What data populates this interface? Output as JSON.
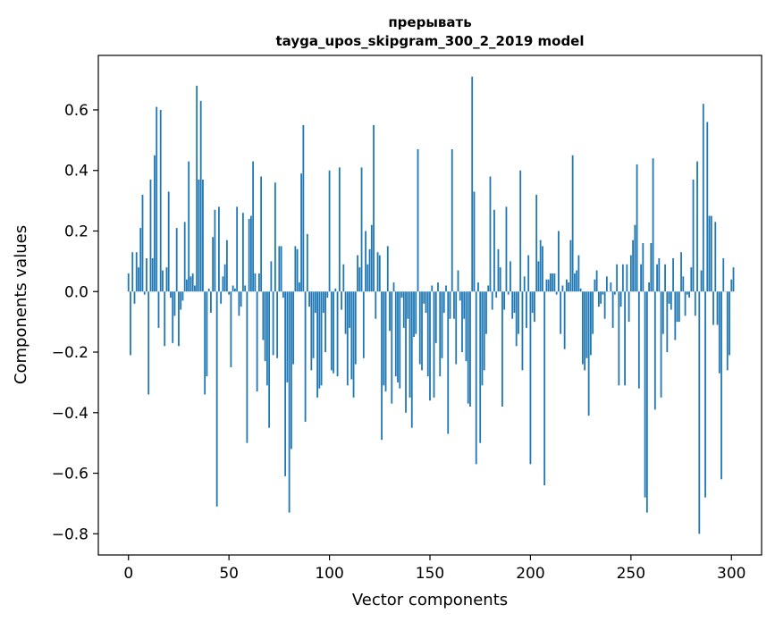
{
  "chart_data": {
    "type": "bar",
    "title": "прерывать",
    "subtitle": "tayga_upos_skipgram_300_2_2019 model",
    "xlabel": "Vector components",
    "ylabel": "Components values",
    "xlim": [
      -15,
      315
    ],
    "ylim": [
      -0.87,
      0.78
    ],
    "xticks": [
      0,
      50,
      100,
      150,
      200,
      250,
      300
    ],
    "xtick_labels": [
      "0",
      "50",
      "100",
      "150",
      "200",
      "250",
      "300"
    ],
    "yticks": [
      -0.8,
      -0.6,
      -0.4,
      -0.2,
      0.0,
      0.2,
      0.4,
      0.6
    ],
    "ytick_labels": [
      "−0.8",
      "−0.6",
      "−0.4",
      "−0.2",
      "0.0",
      "0.2",
      "0.4",
      "0.6"
    ],
    "grid": false,
    "bar_color": "#1f77b4",
    "values": [
      0.06,
      -0.21,
      0.13,
      -0.04,
      0.13,
      0.08,
      0.21,
      0.32,
      -0.01,
      0.11,
      -0.34,
      0.37,
      0.11,
      0.45,
      0.61,
      -0.12,
      0.6,
      0.07,
      -0.18,
      0.08,
      0.33,
      -0.02,
      -0.17,
      -0.08,
      0.21,
      -0.18,
      -0.06,
      -0.03,
      0.23,
      0.04,
      0.43,
      0.05,
      0.06,
      0.02,
      0.68,
      0.37,
      0.63,
      0.37,
      -0.34,
      -0.28,
      0.01,
      -0.07,
      0.18,
      0.27,
      -0.71,
      0.28,
      -0.04,
      0.05,
      0.09,
      0.17,
      -0.01,
      -0.25,
      0.02,
      0.01,
      0.28,
      -0.08,
      -0.05,
      0.26,
      0.02,
      -0.5,
      0.24,
      0.25,
      0.43,
      0.06,
      -0.33,
      0.06,
      0.38,
      -0.16,
      -0.23,
      -0.31,
      -0.45,
      0.1,
      -0.21,
      0.36,
      -0.22,
      0.15,
      0.15,
      -0.02,
      -0.61,
      -0.3,
      -0.73,
      -0.52,
      -0.24,
      0.15,
      0.14,
      0.03,
      0.39,
      0.55,
      -0.43,
      0.19,
      -0.05,
      -0.26,
      -0.22,
      -0.07,
      -0.35,
      -0.32,
      -0.31,
      -0.07,
      -0.2,
      -0.02,
      0.4,
      -0.26,
      -0.27,
      0.01,
      -0.28,
      0.41,
      -0.06,
      0.09,
      -0.14,
      -0.31,
      -0.12,
      -0.29,
      -0.35,
      -0.24,
      0.12,
      0.08,
      0.41,
      -0.22,
      0.2,
      0.09,
      0.14,
      0.22,
      0.55,
      -0.09,
      0.13,
      0.12,
      -0.49,
      -0.31,
      -0.33,
      0.15,
      -0.13,
      -0.37,
      0.03,
      -0.28,
      -0.3,
      -0.32,
      -0.02,
      -0.12,
      -0.4,
      -0.09,
      -0.35,
      -0.45,
      -0.15,
      -0.14,
      0.47,
      -0.24,
      -0.26,
      -0.04,
      -0.07,
      -0.28,
      -0.36,
      0.02,
      -0.35,
      -0.17,
      0.03,
      -0.28,
      -0.22,
      -0.07,
      0.02,
      -0.47,
      -0.09,
      0.47,
      -0.09,
      -0.24,
      0.07,
      -0.03,
      -0.2,
      -0.09,
      -0.23,
      -0.37,
      -0.38,
      0.71,
      0.33,
      -0.57,
      0.03,
      -0.5,
      -0.31,
      -0.26,
      -0.14,
      0.02,
      0.38,
      -0.06,
      0.27,
      -0.02,
      0.14,
      0.08,
      -0.38,
      -0.06,
      0.28,
      -0.01,
      0.1,
      -0.09,
      -0.07,
      -0.18,
      -0.14,
      0.4,
      -0.26,
      0.05,
      -0.12,
      0.12,
      -0.57,
      -0.07,
      -0.1,
      0.32,
      0.1,
      0.17,
      0.15,
      -0.64,
      0.04,
      0.04,
      0.06,
      0.06,
      0.06,
      -0.01,
      0.2,
      -0.14,
      0.02,
      -0.19,
      0.04,
      0.03,
      0.17,
      0.45,
      0.06,
      0.07,
      0.12,
      0.01,
      -0.24,
      -0.26,
      -0.22,
      -0.41,
      -0.21,
      -0.14,
      0.04,
      0.07,
      -0.05,
      -0.04,
      -0.01,
      -0.09,
      0.05,
      0.0,
      0.03,
      -0.12,
      -0.01,
      0.09,
      -0.31,
      -0.05,
      0.09,
      -0.31,
      0.09,
      -0.1,
      0.12,
      0.17,
      0.22,
      0.42,
      -0.32,
      0.09,
      0.16,
      -0.68,
      -0.73,
      0.03,
      0.16,
      0.44,
      -0.39,
      0.09,
      0.11,
      -0.35,
      -0.14,
      0.09,
      -0.2,
      -0.04,
      -0.06,
      0.11,
      -0.16,
      -0.1,
      -0.1,
      0.13,
      0.05,
      -0.08,
      -0.01,
      -0.02,
      0.08,
      0.37,
      -0.08,
      0.43,
      -0.8,
      0.07,
      0.62,
      -0.68,
      0.56,
      0.25,
      0.25,
      -0.11,
      0.23,
      -0.11,
      -0.27,
      -0.62,
      0.11,
      0.0,
      -0.26,
      -0.21,
      0.04,
      0.08
    ]
  }
}
